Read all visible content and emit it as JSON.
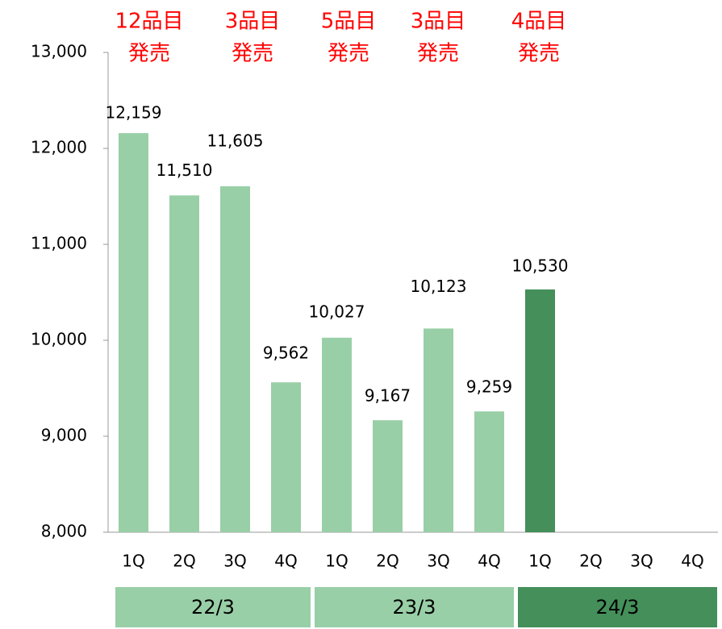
{
  "chart_data": {
    "type": "bar",
    "categories": [
      "1Q",
      "2Q",
      "3Q",
      "4Q",
      "1Q",
      "2Q",
      "3Q",
      "4Q",
      "1Q",
      "2Q",
      "3Q",
      "4Q"
    ],
    "values": [
      12159,
      11510,
      11605,
      9562,
      10027,
      9167,
      10123,
      9259,
      10530,
      null,
      null,
      null
    ],
    "value_labels": [
      "12,159",
      "11,510",
      "11,605",
      "9,562",
      "10,027",
      "9,167",
      "10,123",
      "9,259",
      "10,530",
      null,
      null,
      null
    ],
    "colors": [
      "#99cfa7",
      "#99cfa7",
      "#99cfa7",
      "#99cfa7",
      "#99cfa7",
      "#99cfa7",
      "#99cfa7",
      "#99cfa7",
      "#448f5a",
      "#448f5a",
      "#448f5a",
      "#448f5a"
    ],
    "ylim": [
      8000,
      13000
    ],
    "yticks": [
      {
        "value": 8000,
        "label": "8,000"
      },
      {
        "value": 9000,
        "label": "9,000"
      },
      {
        "value": 10000,
        "label": "10,000"
      },
      {
        "value": 11000,
        "label": "11,000"
      },
      {
        "value": 12000,
        "label": "12,000"
      },
      {
        "value": 13000,
        "label": "13,000"
      }
    ],
    "groups": [
      {
        "label": "22/3",
        "color": "#99cfa7"
      },
      {
        "label": "23/3",
        "color": "#99cfa7"
      },
      {
        "label": "24/3",
        "color": "#448f5a"
      }
    ],
    "annotations": [
      {
        "lines": [
          "12品目",
          "発売"
        ]
      },
      {
        "lines": [
          "3品目",
          "発売"
        ]
      },
      {
        "lines": [
          "5品目",
          "発売"
        ]
      },
      {
        "lines": [
          "3品目",
          "発売"
        ]
      },
      {
        "lines": [
          "4品目",
          "発売"
        ]
      }
    ],
    "annotation_color": "#ff0000"
  }
}
